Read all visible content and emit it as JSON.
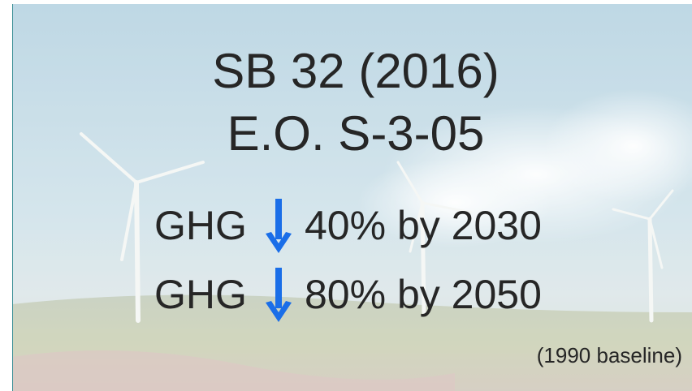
{
  "slide": {
    "title_lines": [
      "SB 32 (2016)",
      "E.O. S-3-05"
    ],
    "targets": [
      {
        "label": "GHG",
        "text": "40% by 2030"
      },
      {
        "label": "GHG",
        "text": "80% by 2050"
      }
    ],
    "note": "(1990 baseline)"
  }
}
